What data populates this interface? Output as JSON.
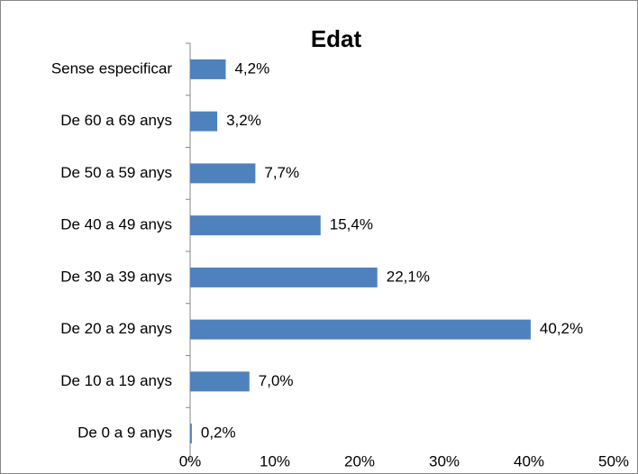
{
  "chart_data": {
    "type": "barh",
    "title": "Edat",
    "categories": [
      "Sense especificar",
      "De 60 a 69 anys",
      "De 50 a 59 anys",
      "De 40 a 49 anys",
      "De 30 a 39 anys",
      "De 20 a 29 anys",
      "De 10 a 19 anys",
      "De 0 a 9 anys"
    ],
    "values": [
      4.2,
      3.2,
      7.7,
      15.4,
      22.1,
      40.2,
      7.0,
      0.2
    ],
    "value_labels": [
      "4,2%",
      "3,2%",
      "7,7%",
      "15,4%",
      "22,1%",
      "40,2%",
      "7,0%",
      "0,2%"
    ],
    "color": "#4f81bd",
    "xlim": [
      0,
      50
    ],
    "xticks": [
      {
        "value": 0,
        "label": "0%"
      },
      {
        "value": 10,
        "label": "10%"
      },
      {
        "value": 20,
        "label": "20%"
      },
      {
        "value": 30,
        "label": "30%"
      },
      {
        "value": 40,
        "label": "40%"
      },
      {
        "value": 50,
        "label": "50%"
      }
    ],
    "grid": false
  }
}
